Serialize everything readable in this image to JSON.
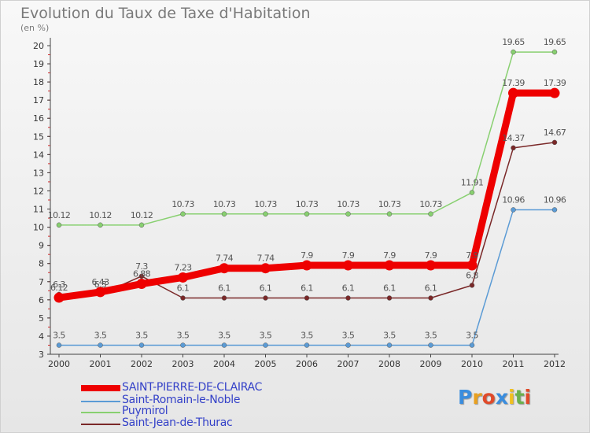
{
  "title": "Evolution du Taux de Taxe d'Habitation",
  "subtitle": "(en %)",
  "logo": {
    "text": "Proxiti",
    "letters": [
      {
        "ch": "P",
        "color": "#3a8dde"
      },
      {
        "ch": "r",
        "color": "#e8a020"
      },
      {
        "ch": "o",
        "color": "#e04a2a"
      },
      {
        "ch": "x",
        "color": "#3a8dde"
      },
      {
        "ch": "i",
        "color": "#f0c020"
      },
      {
        "ch": "t",
        "color": "#6ab04c"
      },
      {
        "ch": "i",
        "color": "#e04a2a"
      }
    ]
  },
  "chart_data": {
    "type": "line",
    "x": [
      "2000",
      "2001",
      "2002",
      "2003",
      "2004",
      "2005",
      "2006",
      "2007",
      "2008",
      "2009",
      "2010",
      "2011",
      "2012"
    ],
    "ylim": [
      3,
      20
    ],
    "yticks": [
      "3",
      "4",
      "5",
      "6",
      "7",
      "8",
      "9",
      "10",
      "11",
      "12",
      "13",
      "14",
      "15",
      "16",
      "17",
      "18",
      "19",
      "20"
    ],
    "grid": false,
    "legend_position": "bottom-left",
    "series": [
      {
        "name": "SAINT-PIERRE-DE-CLAIRAC",
        "color": "#ee0000",
        "values": [
          6.12,
          6.43,
          6.88,
          7.23,
          7.74,
          7.74,
          7.9,
          7.9,
          7.9,
          7.9,
          7.9,
          17.39,
          17.39
        ],
        "labels": [
          "6.12",
          "6.43",
          "6.88",
          "7.23",
          "7.74",
          "7.74",
          "7.9",
          "7.9",
          "7.9",
          "7.9",
          "7.9",
          "17.39",
          "17.39"
        ]
      },
      {
        "name": "Saint-Romain-le-Noble",
        "color": "#5b9bd5",
        "values": [
          3.5,
          3.5,
          3.5,
          3.5,
          3.5,
          3.5,
          3.5,
          3.5,
          3.5,
          3.5,
          3.5,
          10.96,
          10.96
        ],
        "labels": [
          "3.5",
          "3.5",
          "3.5",
          "3.5",
          "3.5",
          "3.5",
          "3.5",
          "3.5",
          "3.5",
          "3.5",
          "3.5",
          "10.96",
          "10.96"
        ]
      },
      {
        "name": "Puymirol",
        "color": "#88d070",
        "values": [
          10.12,
          10.12,
          10.12,
          10.73,
          10.73,
          10.73,
          10.73,
          10.73,
          10.73,
          10.73,
          11.91,
          19.65,
          19.65
        ],
        "labels": [
          "10.12",
          "10.12",
          "10.12",
          "10.73",
          "10.73",
          "10.73",
          "10.73",
          "10.73",
          "10.73",
          "10.73",
          "11.91",
          "19.65",
          "19.65"
        ]
      },
      {
        "name": "Saint-Jean-de-Thurac",
        "color": "#7a2828",
        "values": [
          6.3,
          6.3,
          7.3,
          6.1,
          6.1,
          6.1,
          6.1,
          6.1,
          6.1,
          6.1,
          6.8,
          14.37,
          14.67
        ],
        "labels": [
          "6.3",
          "6.3",
          "7.3",
          "6.1",
          "6.1",
          "6.1",
          "6.1",
          "6.1",
          "6.1",
          "6.1",
          "6.8",
          "14.37",
          "14.67"
        ]
      }
    ]
  }
}
